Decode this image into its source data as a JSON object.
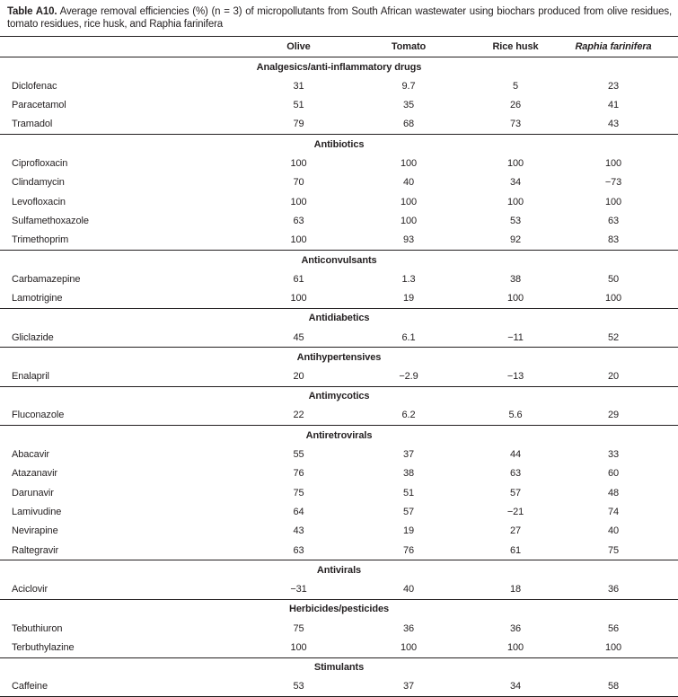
{
  "caption": {
    "label": "Table A10.",
    "text": "Average removal efficiencies (%) (n = 3) of micropollutants from South African wastewater using biochars produced from olive residues, tomato residues, rice husk, and Raphia farinifera"
  },
  "table": {
    "columns": [
      "Olive",
      "Tomato",
      "Rice husk",
      "Raphia farinifera"
    ],
    "sections": [
      {
        "name": "Analgesics/anti-inflammatory drugs",
        "rows": [
          {
            "compound": "Diclofenac",
            "values": [
              "31",
              "9.7",
              "5",
              "23"
            ]
          },
          {
            "compound": "Paracetamol",
            "values": [
              "51",
              "35",
              "26",
              "41"
            ]
          },
          {
            "compound": "Tramadol",
            "values": [
              "79",
              "68",
              "73",
              "43"
            ]
          }
        ]
      },
      {
        "name": "Antibiotics",
        "rows": [
          {
            "compound": "Ciprofloxacin",
            "values": [
              "100",
              "100",
              "100",
              "100"
            ]
          },
          {
            "compound": "Clindamycin",
            "values": [
              "70",
              "40",
              "34",
              "−73"
            ]
          },
          {
            "compound": "Levofloxacin",
            "values": [
              "100",
              "100",
              "100",
              "100"
            ]
          },
          {
            "compound": "Sulfamethoxazole",
            "values": [
              "63",
              "100",
              "53",
              "63"
            ]
          },
          {
            "compound": "Trimethoprim",
            "values": [
              "100",
              "93",
              "92",
              "83"
            ]
          }
        ]
      },
      {
        "name": "Anticonvulsants",
        "rows": [
          {
            "compound": "Carbamazepine",
            "values": [
              "61",
              "1.3",
              "38",
              "50"
            ]
          },
          {
            "compound": "Lamotrigine",
            "values": [
              "100",
              "19",
              "100",
              "100"
            ]
          }
        ]
      },
      {
        "name": "Antidiabetics",
        "rows": [
          {
            "compound": "Gliclazide",
            "values": [
              "45",
              "6.1",
              "−11",
              "52"
            ]
          }
        ]
      },
      {
        "name": "Antihypertensives",
        "rows": [
          {
            "compound": "Enalapril",
            "values": [
              "20",
              "−2.9",
              "−13",
              "20"
            ]
          }
        ]
      },
      {
        "name": "Antimycotics",
        "rows": [
          {
            "compound": "Fluconazole",
            "values": [
              "22",
              "6.2",
              "5.6",
              "29"
            ]
          }
        ]
      },
      {
        "name": "Antiretrovirals",
        "rows": [
          {
            "compound": "Abacavir",
            "values": [
              "55",
              "37",
              "44",
              "33"
            ]
          },
          {
            "compound": "Atazanavir",
            "values": [
              "76",
              "38",
              "63",
              "60"
            ]
          },
          {
            "compound": "Darunavir",
            "values": [
              "75",
              "51",
              "57",
              "48"
            ]
          },
          {
            "compound": "Lamivudine",
            "values": [
              "64",
              "57",
              "−21",
              "74"
            ]
          },
          {
            "compound": "Nevirapine",
            "values": [
              "43",
              "19",
              "27",
              "40"
            ]
          },
          {
            "compound": "Raltegravir",
            "values": [
              "63",
              "76",
              "61",
              "75"
            ]
          }
        ]
      },
      {
        "name": "Antivirals",
        "rows": [
          {
            "compound": "Aciclovir",
            "values": [
              "−31",
              "40",
              "18",
              "36"
            ]
          }
        ]
      },
      {
        "name": "Herbicides/pesticides",
        "rows": [
          {
            "compound": "Tebuthiuron",
            "values": [
              "75",
              "36",
              "36",
              "56"
            ]
          },
          {
            "compound": "Terbuthylazine",
            "values": [
              "100",
              "100",
              "100",
              "100"
            ]
          }
        ]
      },
      {
        "name": "Stimulants",
        "rows": [
          {
            "compound": "Caffeine",
            "values": [
              "53",
              "37",
              "34",
              "58"
            ]
          }
        ]
      }
    ]
  }
}
